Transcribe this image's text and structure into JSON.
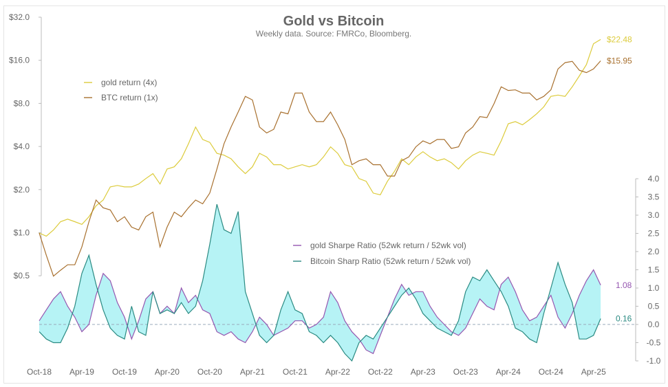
{
  "chart_data": {
    "type": "line",
    "title": "Gold vs Bitcoin",
    "subtitle": "Weekly data.  Source: FMRCo, Bloomberg.",
    "grid": false,
    "x": [
      "2018-10",
      "2018-11",
      "2018-12",
      "2019-01",
      "2019-02",
      "2019-03",
      "2019-04",
      "2019-05",
      "2019-06",
      "2019-07",
      "2019-08",
      "2019-09",
      "2019-10",
      "2019-11",
      "2019-12",
      "2020-01",
      "2020-02",
      "2020-03",
      "2020-04",
      "2020-05",
      "2020-06",
      "2020-07",
      "2020-08",
      "2020-09",
      "2020-10",
      "2020-11",
      "2020-12",
      "2021-01",
      "2021-02",
      "2021-03",
      "2021-04",
      "2021-05",
      "2021-06",
      "2021-07",
      "2021-08",
      "2021-09",
      "2021-10",
      "2021-11",
      "2021-12",
      "2022-01",
      "2022-02",
      "2022-03",
      "2022-04",
      "2022-05",
      "2022-06",
      "2022-07",
      "2022-08",
      "2022-09",
      "2022-10",
      "2022-11",
      "2022-12",
      "2023-01",
      "2023-02",
      "2023-03",
      "2023-04",
      "2023-05",
      "2023-06",
      "2023-07",
      "2023-08",
      "2023-09",
      "2023-10",
      "2023-11",
      "2023-12",
      "2024-01",
      "2024-02",
      "2024-03",
      "2024-04",
      "2024-05",
      "2024-06",
      "2024-07",
      "2024-08",
      "2024-09",
      "2024-10",
      "2024-11",
      "2024-12",
      "2025-01",
      "2025-02",
      "2025-03",
      "2025-04",
      "2025-05"
    ],
    "x_tick_labels": [
      "Oct-18",
      "Apr-19",
      "Oct-19",
      "Apr-20",
      "Oct-20",
      "Apr-21",
      "Oct-21",
      "Apr-22",
      "Oct-22",
      "Apr-23",
      "Oct-23",
      "Apr-24",
      "Oct-24",
      "Apr-25"
    ],
    "left_axis": {
      "scale": "log2",
      "range": [
        0.5,
        32
      ],
      "tick_labels": [
        "$32.0",
        "$16.0",
        "$8.0",
        "$4.0",
        "$2.0",
        "$1.0",
        "$0.5"
      ]
    },
    "right_axis": {
      "range": [
        -1.0,
        4.0
      ],
      "tick_labels": [
        "4.0",
        "3.5",
        "3.0",
        "2.5",
        "2.0",
        "1.5",
        "1.0",
        "0.5",
        "0.0",
        "-0.5",
        "-1.0"
      ]
    },
    "series": [
      {
        "name": "gold return (4x)",
        "axis": "left",
        "color": "#dccb3a",
        "end_label": "$22.48",
        "values": [
          1.0,
          0.95,
          1.05,
          1.2,
          1.25,
          1.2,
          1.15,
          1.3,
          1.55,
          1.7,
          2.1,
          2.15,
          2.1,
          2.1,
          2.2,
          2.4,
          2.6,
          2.2,
          2.8,
          2.9,
          3.3,
          4.2,
          5.5,
          4.5,
          4.3,
          3.6,
          3.5,
          3.3,
          2.9,
          2.6,
          2.9,
          3.6,
          3.4,
          3.0,
          3.0,
          2.8,
          2.9,
          3.0,
          2.9,
          3.0,
          3.4,
          4.0,
          3.6,
          3.0,
          2.9,
          2.4,
          2.3,
          1.9,
          1.85,
          2.3,
          2.7,
          3.3,
          3.0,
          3.4,
          3.7,
          3.4,
          3.2,
          3.3,
          3.1,
          2.8,
          3.2,
          3.5,
          3.7,
          3.6,
          3.5,
          4.4,
          5.8,
          6.0,
          5.7,
          6.2,
          6.8,
          7.6,
          9.0,
          9.2,
          9.0,
          10.5,
          12.5,
          15,
          21,
          22.48
        ]
      },
      {
        "name": "BTC return (1x)",
        "axis": "left",
        "color": "#a8702e",
        "end_label": "$15.95",
        "values": [
          1.0,
          0.7,
          0.5,
          0.55,
          0.6,
          0.6,
          0.8,
          1.2,
          1.7,
          1.5,
          1.45,
          1.2,
          1.3,
          1.1,
          1.05,
          1.3,
          1.4,
          0.8,
          1.1,
          1.4,
          1.3,
          1.5,
          1.7,
          1.6,
          1.9,
          2.8,
          4.2,
          5.5,
          7.0,
          9.0,
          8.5,
          5.5,
          5.0,
          5.3,
          7.0,
          6.8,
          9.5,
          9.5,
          7.0,
          6.0,
          6.0,
          7.0,
          5.7,
          4.5,
          3.0,
          3.2,
          3.3,
          3.0,
          3.0,
          2.5,
          2.5,
          3.2,
          3.4,
          4.0,
          4.4,
          4.2,
          4.5,
          4.5,
          3.9,
          4.0,
          5.0,
          5.5,
          6.5,
          6.4,
          8.0,
          10.5,
          9.9,
          10.0,
          9.5,
          9.5,
          8.5,
          9.0,
          10.0,
          14.0,
          15.5,
          15.8,
          13.7,
          13.2,
          14.0,
          15.95
        ]
      },
      {
        "name": "gold Sharpe Ratio (52wk return / 52wk vol)",
        "axis": "right",
        "color": "#9556b0",
        "end_label": "1.08",
        "values": [
          0.1,
          0.4,
          0.7,
          0.9,
          0.5,
          0.2,
          -0.2,
          0.0,
          0.8,
          1.4,
          1.2,
          0.6,
          0.2,
          -0.4,
          0.1,
          0.7,
          0.9,
          0.3,
          0.5,
          0.3,
          1.0,
          0.6,
          0.8,
          0.4,
          0.3,
          -0.2,
          -0.3,
          -0.2,
          -0.4,
          -0.5,
          -0.2,
          0.2,
          0.0,
          -0.3,
          -0.2,
          -0.1,
          0.1,
          0.1,
          -0.1,
          0.0,
          0.2,
          0.9,
          0.6,
          0.1,
          -0.2,
          -0.4,
          -0.7,
          -0.8,
          -0.3,
          0.2,
          0.7,
          1.1,
          0.8,
          0.9,
          0.9,
          0.5,
          0.2,
          0.0,
          -0.2,
          -0.3,
          -0.1,
          0.3,
          0.7,
          0.5,
          0.4,
          1.1,
          1.3,
          0.9,
          0.4,
          0.1,
          0.2,
          0.5,
          0.8,
          0.2,
          -0.1,
          0.3,
          0.8,
          1.2,
          1.5,
          1.08
        ]
      },
      {
        "name": "Bitcoin Sharp Ratio (52wk return / 52wk vol)",
        "axis": "right",
        "color": "#2a8a82",
        "end_label": "0.16",
        "values": [
          -0.2,
          -0.4,
          -0.5,
          -0.5,
          -0.1,
          0.5,
          1.4,
          1.9,
          1.1,
          0.4,
          -0.1,
          -0.3,
          -0.4,
          0.5,
          -0.2,
          -0.3,
          0.9,
          0.3,
          0.4,
          0.3,
          0.6,
          0.3,
          0.5,
          1.2,
          2.2,
          3.3,
          2.6,
          2.5,
          3.1,
          0.9,
          0.3,
          -0.3,
          -0.5,
          -0.3,
          0.4,
          0.9,
          0.4,
          0.3,
          -0.2,
          -0.3,
          -0.5,
          -0.3,
          -0.5,
          -0.8,
          -1.0,
          -0.5,
          -0.3,
          -0.4,
          -0.1,
          0.2,
          0.5,
          0.8,
          1.0,
          0.7,
          0.3,
          0.1,
          -0.1,
          -0.2,
          -0.3,
          0.1,
          0.9,
          1.3,
          1.2,
          1.5,
          1.2,
          0.9,
          0.5,
          -0.1,
          -0.2,
          -0.4,
          -0.5,
          0.3,
          1.0,
          1.7,
          1.1,
          0.6,
          -0.4,
          -0.4,
          -0.3,
          0.16
        ]
      }
    ],
    "fill_between_sharpe_color": "#b6f3f5",
    "zero_line": "dashed"
  }
}
